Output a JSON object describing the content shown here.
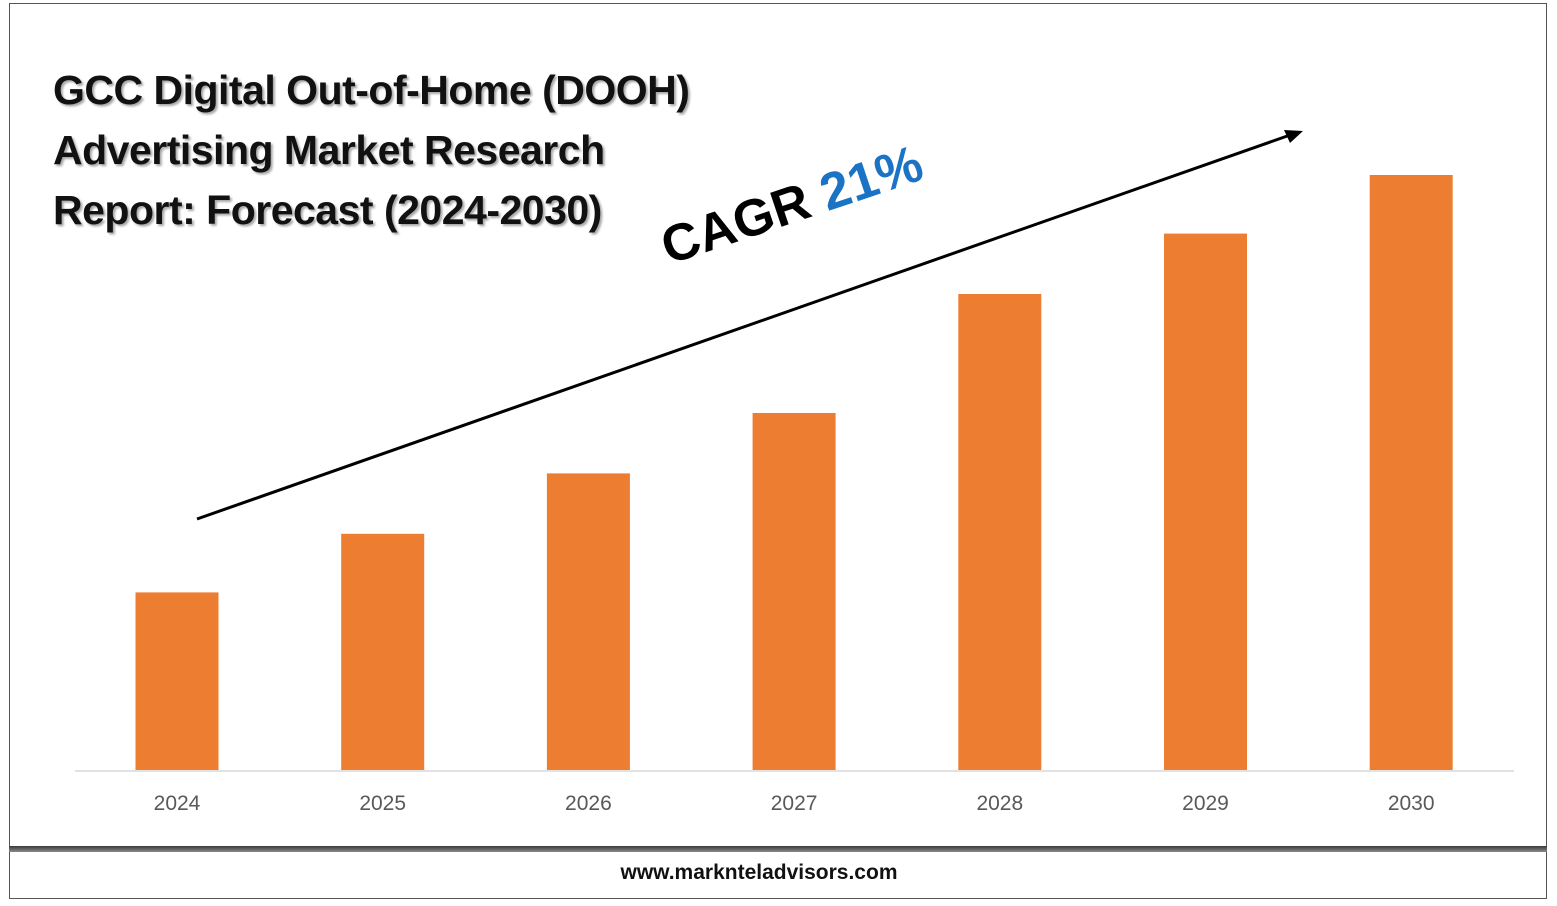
{
  "title": "GCC Digital Out-of-Home (DOOH) Advertising Market Research Report: Forecast (2024-2030)",
  "cagr": {
    "label": "CAGR",
    "value": "21%",
    "value_color": "#1a73c4"
  },
  "footer": {
    "website": "www.marknteladvisors.com"
  },
  "chart_data": {
    "type": "bar",
    "categories": [
      "2024",
      "2025",
      "2026",
      "2027",
      "2028",
      "2029",
      "2030"
    ],
    "values": [
      1.0,
      1.33,
      1.67,
      2.01,
      2.68,
      3.02,
      3.35
    ],
    "bar_color": "#ed7d31",
    "ylim": [
      0,
      3.35
    ],
    "grid": false,
    "legend": "none",
    "annotations": [
      "CAGR 21%"
    ]
  }
}
